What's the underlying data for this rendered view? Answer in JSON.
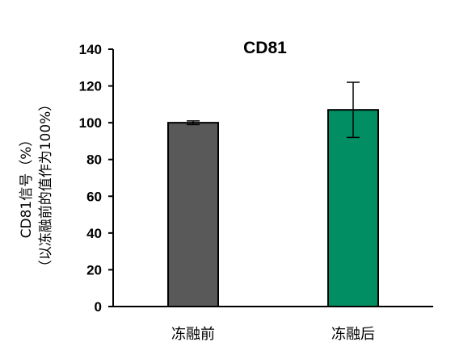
{
  "chart_data": {
    "type": "bar",
    "title": "CD81",
    "categories": [
      "冻融前",
      "冻融后"
    ],
    "series": [
      {
        "values": [
          100,
          107
        ],
        "error": [
          1,
          15
        ],
        "colors": [
          "#595959",
          "#008e62"
        ]
      }
    ],
    "ylabel": [
      "CD81信号（%）",
      "（以冻融前的值作为100%）"
    ],
    "xlabel": "",
    "ylim": [
      0,
      140
    ],
    "yticks": [
      0,
      20,
      40,
      60,
      80,
      100,
      120,
      140
    ],
    "grid": false,
    "legend": "none"
  }
}
